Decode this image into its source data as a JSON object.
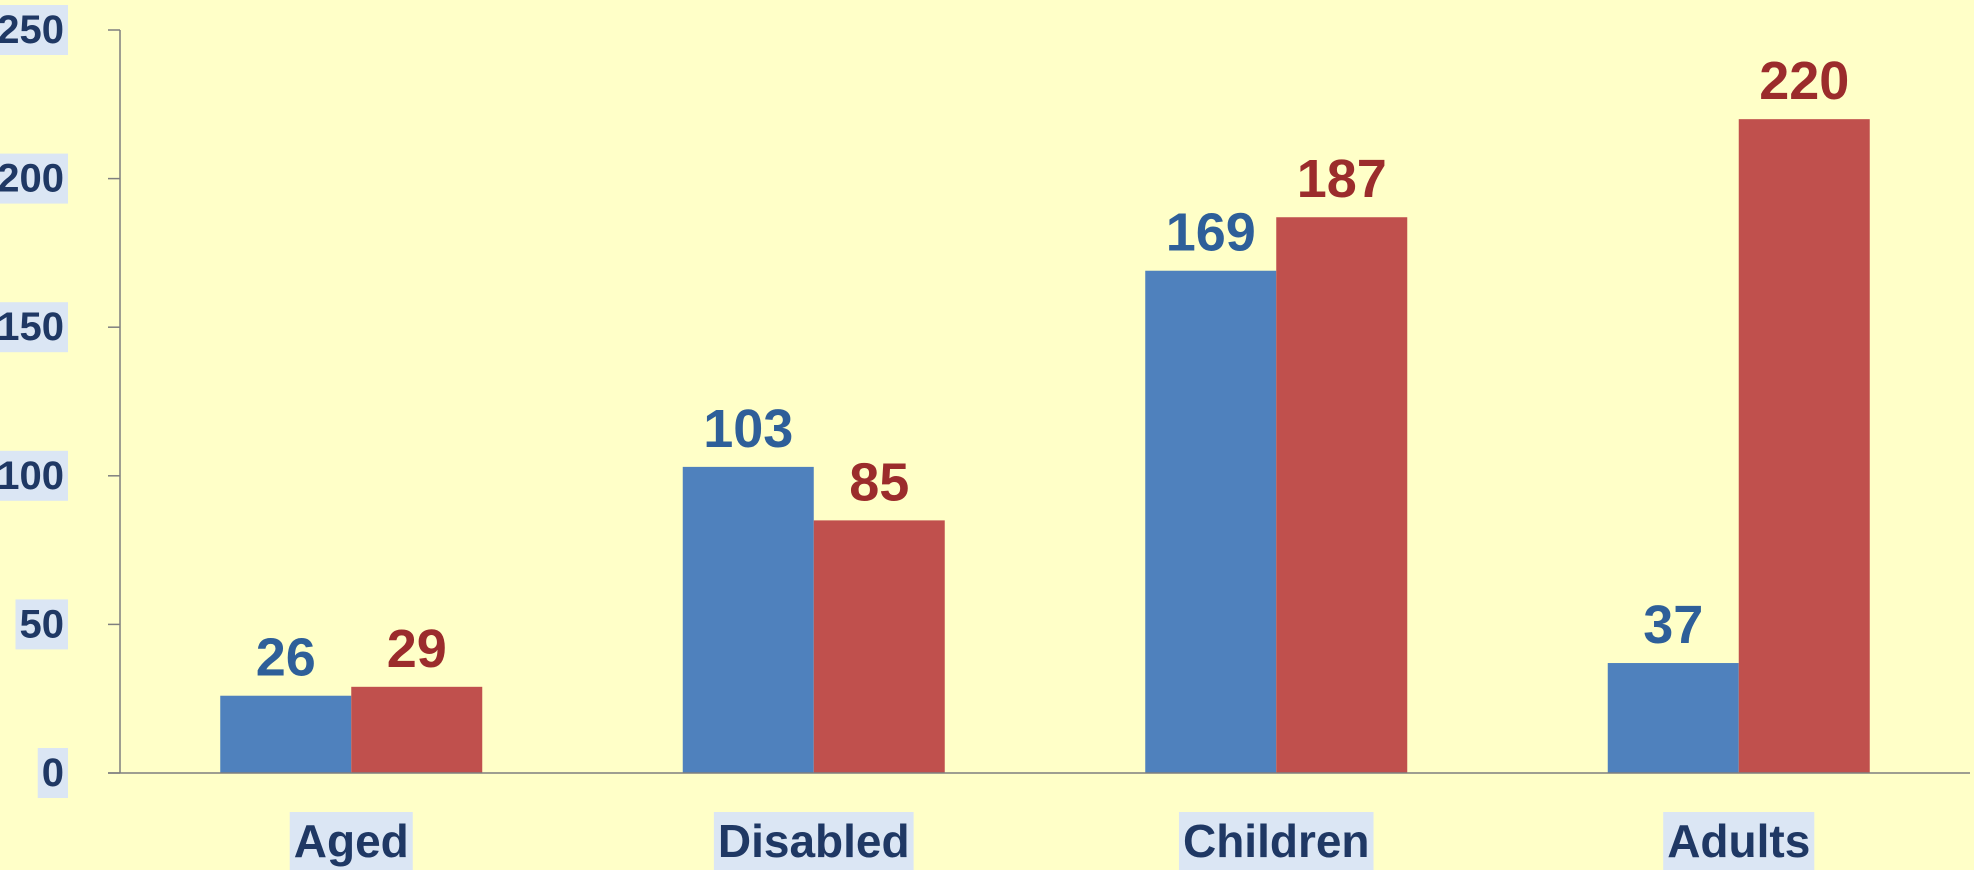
{
  "chart_data": {
    "type": "bar",
    "categories": [
      "Aged",
      "Disabled",
      "Children",
      "Adults"
    ],
    "series": [
      {
        "values": [
          26,
          103,
          169,
          37
        ],
        "color": "#4f81bd",
        "label_color": "#2e5f99"
      },
      {
        "values": [
          29,
          85,
          187,
          220
        ],
        "color": "#c0504d",
        "label_color": "#9b2c2c"
      }
    ],
    "title": "",
    "xlabel": "",
    "ylabel": "",
    "ylim": [
      0,
      250
    ],
    "yticks": [
      0,
      50,
      100,
      150,
      200,
      250
    ],
    "grid": false,
    "legend": "none",
    "background_color": "#ffffc8",
    "label_highlight_color": "#dbe6f4",
    "axis_color": "#7f7f7f"
  }
}
